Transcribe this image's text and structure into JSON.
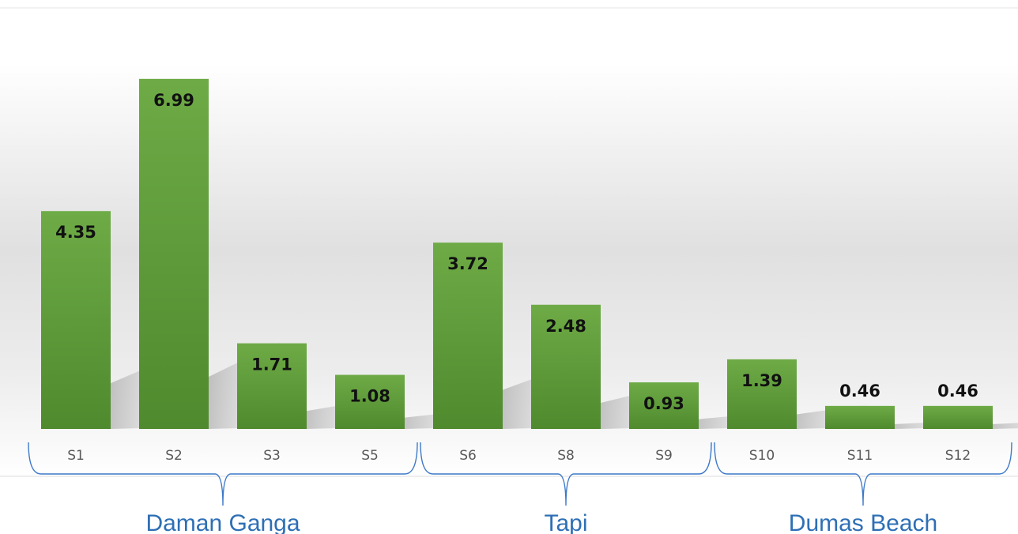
{
  "chart_data": {
    "type": "bar",
    "categories": [
      "S1",
      "S2",
      "S3",
      "S5",
      "S6",
      "S8",
      "S9",
      "S10",
      "S11",
      "S12"
    ],
    "values": [
      4.35,
      6.99,
      1.71,
      1.08,
      3.72,
      2.48,
      0.93,
      1.39,
      0.46,
      0.46
    ],
    "value_labels": [
      "4.35",
      "6.99",
      "1.71",
      "1.08",
      "3.72",
      "2.48",
      "0.93",
      "1.39",
      "0.46",
      "0.46"
    ],
    "groups": [
      {
        "label": "Daman Ganga",
        "categories": [
          "S1",
          "S2",
          "S3",
          "S5"
        ]
      },
      {
        "label": "Tapi",
        "categories": [
          "S6",
          "S8",
          "S9"
        ]
      },
      {
        "label": "Dumas Beach",
        "categories": [
          "S10",
          "S11",
          "S12"
        ]
      }
    ],
    "ylim": [
      0,
      7
    ],
    "grid": false,
    "legend": "none",
    "colors": {
      "bar": "#6aa843",
      "bar_dark": "#4e8a2c",
      "bracket": "#3c78c8",
      "group_text": "#2e6fb5"
    }
  }
}
